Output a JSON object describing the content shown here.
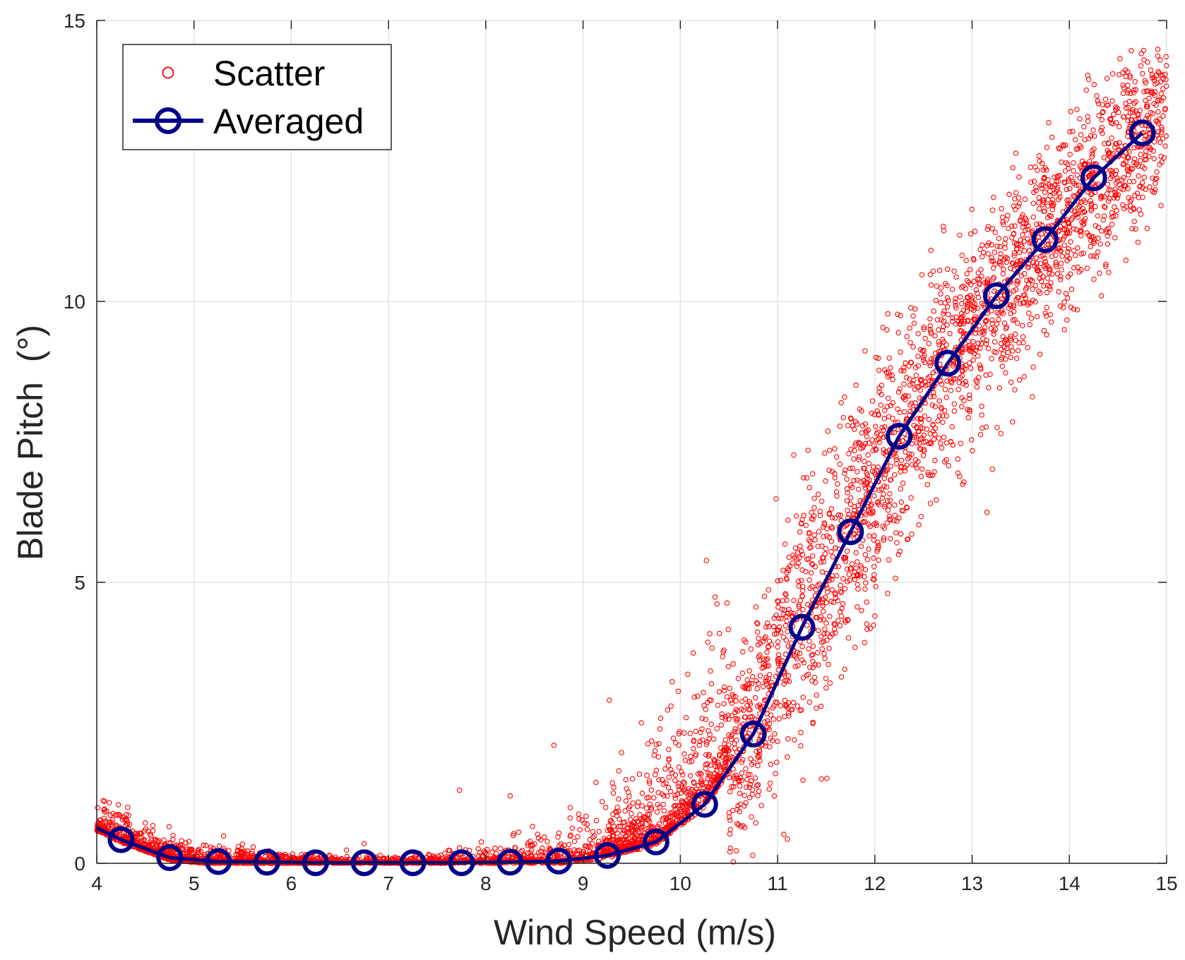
{
  "chart_data": {
    "type": "scatter",
    "title": "",
    "xlabel": "Wind Speed (m/s)",
    "ylabel": "Blade Pitch  (°)",
    "xlim": [
      4,
      15
    ],
    "ylim": [
      0,
      15
    ],
    "xticks": [
      4,
      5,
      6,
      7,
      8,
      9,
      10,
      11,
      12,
      13,
      14,
      15
    ],
    "yticks": [
      0,
      5,
      10,
      15
    ],
    "grid": true,
    "legend": {
      "position": "top-left",
      "entries": [
        "Scatter",
        "Averaged"
      ]
    },
    "colors": {
      "scatter": "#ff0000",
      "averaged": "#00008b",
      "grid": "#e3e3e3",
      "axis": "#262626"
    },
    "series": [
      {
        "name": "Averaged",
        "kind": "line-with-circle-markers",
        "x": [
          4.25,
          4.75,
          5.25,
          5.75,
          6.25,
          6.75,
          7.25,
          7.75,
          8.25,
          8.75,
          9.25,
          9.75,
          10.25,
          10.75,
          11.25,
          11.75,
          12.25,
          12.75,
          13.25,
          13.75,
          14.25,
          14.75
        ],
        "y": [
          0.42,
          0.1,
          0.03,
          0.02,
          0.01,
          0.01,
          0.01,
          0.01,
          0.02,
          0.04,
          0.14,
          0.38,
          1.05,
          2.3,
          4.2,
          5.9,
          7.6,
          8.9,
          10.1,
          11.1,
          12.2,
          13.0
        ],
        "line_start": {
          "x": 4.0,
          "y": 0.63
        }
      },
      {
        "name": "Scatter",
        "kind": "scatter-cloud",
        "note": "dense point cloud scattered around the averaged curve",
        "x_range": [
          4.0,
          15.0
        ],
        "spread_sd": [
          [
            4.0,
            0.22
          ],
          [
            5.0,
            0.1
          ],
          [
            6.0,
            0.05
          ],
          [
            7.0,
            0.04
          ],
          [
            8.0,
            0.08
          ],
          [
            8.75,
            0.2
          ],
          [
            9.25,
            0.35
          ],
          [
            9.75,
            0.55
          ],
          [
            10.25,
            0.75
          ],
          [
            10.75,
            0.95
          ],
          [
            11.25,
            1.05
          ],
          [
            11.75,
            1.05
          ],
          [
            12.25,
            1.0
          ],
          [
            12.75,
            0.9
          ],
          [
            13.25,
            0.9
          ],
          [
            13.75,
            0.8
          ],
          [
            14.25,
            0.8
          ],
          [
            15.0,
            0.8
          ]
        ],
        "outliers": [
          {
            "x": 9.27,
            "y": 2.9
          },
          {
            "x": 8.7,
            "y": 2.1
          },
          {
            "x": 7.73,
            "y": 1.3
          },
          {
            "x": 8.25,
            "y": 1.2
          },
          {
            "x": 11.45,
            "y": 1.5
          },
          {
            "x": 14.33,
            "y": 10.1
          },
          {
            "x": 14.8,
            "y": 11.3
          },
          {
            "x": 12.0,
            "y": 4.4
          },
          {
            "x": 9.6,
            "y": 2.5
          },
          {
            "x": 6.75,
            "y": 0.35
          }
        ]
      }
    ]
  }
}
